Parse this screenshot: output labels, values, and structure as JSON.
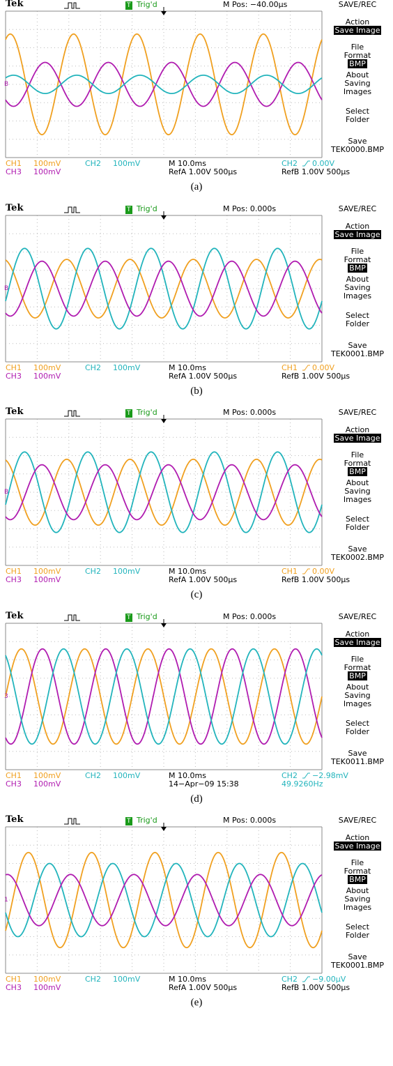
{
  "panels": [
    {
      "header": {
        "brand": "Tek",
        "trigger_badge": "T",
        "trigger_state": "Trig'd",
        "position": "M Pos: −40.00µs",
        "menu_title": "SAVE/REC"
      },
      "menu": [
        {
          "lines": [
            "Action"
          ],
          "value": "Save Image",
          "highlight": true
        },
        {
          "lines": [
            "File",
            "Format"
          ],
          "value": "BMP",
          "highlight": true
        },
        {
          "lines": [
            "About",
            "Saving",
            "Images"
          ]
        },
        {
          "lines": [
            "Select",
            "Folder"
          ]
        },
        {
          "lines": [
            "Save"
          ],
          "value": "TEK0000.BMP",
          "highlight": false
        }
      ],
      "ref_marker": "B",
      "footer": {
        "channels": [
          {
            "name": "CH1",
            "scale": "100mV",
            "color": "#f0a020"
          },
          {
            "name": "CH2",
            "scale": "100mV",
            "color": "#22b4bc"
          },
          {
            "name": "CH3",
            "scale": "100mV",
            "color": "#b01cb0"
          }
        ],
        "timebase": "M 10.0ms",
        "trigger": {
          "source": "CH2",
          "level": "0.00V",
          "color": "#22b4bc"
        },
        "center2": "RefA 1.00V 500µs",
        "right2": {
          "text": "RefB 1.00V 500µs",
          "color": "#000000"
        }
      },
      "cycles": 5,
      "traces": [
        {
          "color": "#f0a020",
          "amplitude": 2.75,
          "phase": 63
        },
        {
          "color": "#b01cb0",
          "amplitude": 1.2,
          "phase": 225
        },
        {
          "color": "#22b4bc",
          "amplitude": 0.5,
          "phase": 45
        }
      ],
      "caption": "(a)"
    },
    {
      "header": {
        "brand": "Tek",
        "trigger_badge": "T",
        "trigger_state": "Trig'd",
        "position": "M Pos: 0.000s",
        "menu_title": "SAVE/REC"
      },
      "menu": [
        {
          "lines": [
            "Action"
          ],
          "value": "Save Image",
          "highlight": true
        },
        {
          "lines": [
            "File",
            "Format"
          ],
          "value": "BMP",
          "highlight": true
        },
        {
          "lines": [
            "About",
            "Saving",
            "Images"
          ]
        },
        {
          "lines": [
            "Select",
            "Folder"
          ]
        },
        {
          "lines": [
            "Save"
          ],
          "value": "TEK0001.BMP",
          "highlight": false
        }
      ],
      "ref_marker": "B",
      "footer": {
        "channels": [
          {
            "name": "CH1",
            "scale": "100mV",
            "color": "#f0a020"
          },
          {
            "name": "CH2",
            "scale": "100mV",
            "color": "#22b4bc"
          },
          {
            "name": "CH3",
            "scale": "100mV",
            "color": "#b01cb0"
          }
        ],
        "timebase": "M 10.0ms",
        "trigger": {
          "source": "CH1",
          "level": "0.00V",
          "color": "#f0a020"
        },
        "center2": "RefA 1.00V 500µs",
        "right2": {
          "text": "RefB 1.00V 500µs",
          "color": "#000000"
        }
      },
      "cycles": 5,
      "traces": [
        {
          "color": "#f0a020",
          "amplitude": 1.6,
          "phase": 102
        },
        {
          "color": "#22b4bc",
          "amplitude": 2.2,
          "phase": -18
        },
        {
          "color": "#b01cb0",
          "amplitude": 1.5,
          "phase": -117
        }
      ],
      "caption": "(b)"
    },
    {
      "header": {
        "brand": "Tek",
        "trigger_badge": "T",
        "trigger_state": "Trig'd",
        "position": "M Pos: 0.000s",
        "menu_title": "SAVE/REC"
      },
      "menu": [
        {
          "lines": [
            "Action"
          ],
          "value": "Save Image",
          "highlight": true
        },
        {
          "lines": [
            "File",
            "Format"
          ],
          "value": "BMP",
          "highlight": true
        },
        {
          "lines": [
            "About",
            "Saving",
            "Images"
          ]
        },
        {
          "lines": [
            "Select",
            "Folder"
          ]
        },
        {
          "lines": [
            "Save"
          ],
          "value": "TEK0002.BMP",
          "highlight": false
        }
      ],
      "ref_marker": "B",
      "footer": {
        "channels": [
          {
            "name": "CH1",
            "scale": "100mV",
            "color": "#f0a020"
          },
          {
            "name": "CH2",
            "scale": "100mV",
            "color": "#22b4bc"
          },
          {
            "name": "CH3",
            "scale": "100mV",
            "color": "#b01cb0"
          }
        ],
        "timebase": "M 10.0ms",
        "trigger": {
          "source": "CH1",
          "level": "0.00V",
          "color": "#f0a020"
        },
        "center2": "RefA 1.00V 500µs",
        "right2": {
          "text": "RefB 1.00V 500µs",
          "color": "#000000"
        }
      },
      "cycles": 5,
      "traces": [
        {
          "color": "#f0a020",
          "amplitude": 1.8,
          "phase": 102
        },
        {
          "color": "#22b4bc",
          "amplitude": 2.2,
          "phase": -18
        },
        {
          "color": "#b01cb0",
          "amplitude": 1.5,
          "phase": -117
        }
      ],
      "caption": "(c)"
    },
    {
      "header": {
        "brand": "Tek",
        "trigger_badge": "T",
        "trigger_state": "Trig'd",
        "position": "M Pos: 0.000s",
        "menu_title": "SAVE/REC"
      },
      "menu": [
        {
          "lines": [
            "Action"
          ],
          "value": "Save Image",
          "highlight": true
        },
        {
          "lines": [
            "File",
            "Format"
          ],
          "value": "BMP",
          "highlight": true
        },
        {
          "lines": [
            "About",
            "Saving",
            "Images"
          ]
        },
        {
          "lines": [
            "Select",
            "Folder"
          ]
        },
        {
          "lines": [
            "Save"
          ],
          "value": "TEK0011.BMP",
          "highlight": false
        }
      ],
      "ref_marker": "3",
      "footer": {
        "channels": [
          {
            "name": "CH1",
            "scale": "100mV",
            "color": "#f0a020"
          },
          {
            "name": "CH2",
            "scale": "100mV",
            "color": "#22b4bc"
          },
          {
            "name": "CH3",
            "scale": "100mV",
            "color": "#b01cb0"
          }
        ],
        "timebase": "M 10.0ms",
        "trigger": {
          "source": "CH2",
          "level": "−2.98mV",
          "color": "#22b4bc"
        },
        "center2": "14−Apr−09 15:38",
        "right2": {
          "text": "49.9260Hz",
          "color": "#22b4bc"
        }
      },
      "cycles": 5,
      "traces": [
        {
          "color": "#f0a020",
          "amplitude": 2.6,
          "phase": 0
        },
        {
          "color": "#b01cb0",
          "amplitude": 2.6,
          "phase": -120
        },
        {
          "color": "#22b4bc",
          "amplitude": 2.6,
          "phase": 120
        }
      ],
      "caption": "(d)"
    },
    {
      "header": {
        "brand": "Tek",
        "trigger_badge": "T",
        "trigger_state": "Trig'd",
        "position": "M Pos: 0.000s",
        "menu_title": "SAVE/REC"
      },
      "menu": [
        {
          "lines": [
            "Action"
          ],
          "value": "Save Image",
          "highlight": true
        },
        {
          "lines": [
            "File",
            "Format"
          ],
          "value": "BMP",
          "highlight": true
        },
        {
          "lines": [
            "About",
            "Saving",
            "Images"
          ]
        },
        {
          "lines": [
            "Select",
            "Folder"
          ]
        },
        {
          "lines": [
            "Save"
          ],
          "value": "TEK0001.BMP",
          "highlight": false
        }
      ],
      "ref_marker": "1",
      "footer": {
        "channels": [
          {
            "name": "CH1",
            "scale": "100mV",
            "color": "#f0a020"
          },
          {
            "name": "CH2",
            "scale": "100mV",
            "color": "#22b4bc"
          },
          {
            "name": "CH3",
            "scale": "100mV",
            "color": "#b01cb0"
          }
        ],
        "timebase": "M 10.0ms",
        "trigger": {
          "source": "CH2",
          "level": "−9.00µV",
          "color": "#22b4bc"
        },
        "center2": "RefA 1.00V 500µs",
        "right2": {
          "text": "RefB 1.00V 500µs",
          "color": "#000000"
        }
      },
      "cycles": 5,
      "traces": [
        {
          "color": "#f0a020",
          "amplitude": 2.6,
          "phase": -40
        },
        {
          "color": "#22b4bc",
          "amplitude": 2.0,
          "phase": -160
        },
        {
          "color": "#b01cb0",
          "amplitude": 1.4,
          "phase": 80
        }
      ],
      "caption": "(e)"
    }
  ]
}
